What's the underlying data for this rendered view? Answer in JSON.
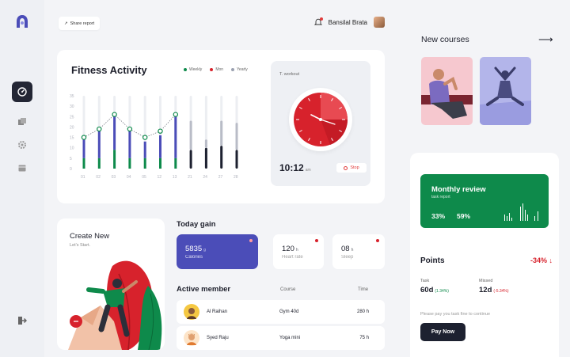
{
  "colors": {
    "accent_green": "#0e8a4b",
    "accent_purple": "#4b4db8",
    "accent_red": "#d7222c",
    "dark": "#1d2130"
  },
  "header": {
    "share_label": "Share report",
    "user_name": "Bansilal Brata"
  },
  "fitness": {
    "title": "Fitness Activity",
    "legend": [
      {
        "label": "Weekly",
        "color": "#0e8a4b"
      },
      {
        "label": "Mon",
        "color": "#d7222c"
      },
      {
        "label": "Yearly",
        "color": "#9aa0b0"
      }
    ]
  },
  "chart_data": {
    "type": "bar",
    "ylabels": [
      "35",
      "30",
      "25",
      "20",
      "15",
      "10",
      "5",
      "0"
    ],
    "categories": [
      "01",
      "02",
      "03",
      "04",
      "05",
      "12",
      "13",
      "21",
      "24",
      "27",
      "28"
    ],
    "ylim": [
      0,
      35
    ],
    "series": [
      {
        "values": [
          14,
          18,
          25,
          18,
          13,
          16,
          25,
          0,
          0,
          0,
          0
        ],
        "color": "#4b4db8"
      },
      {
        "values": [
          5,
          5,
          9,
          5,
          5,
          5,
          5,
          0,
          0,
          0,
          0
        ],
        "color": "#0e8a4b"
      },
      {
        "values": [
          0,
          0,
          0,
          0,
          0,
          0,
          0,
          23,
          14,
          23,
          22
        ],
        "color": "#b9bcc7"
      },
      {
        "values": [
          0,
          0,
          0,
          0,
          0,
          0,
          0,
          9,
          10,
          11,
          9
        ],
        "color": "#1d2130"
      }
    ],
    "line_points": [
      15,
      19,
      26,
      19,
      15,
      18,
      26
    ]
  },
  "workout": {
    "label": "T. workout",
    "time": "10:12",
    "unit": "am",
    "stop_label": "Stop"
  },
  "create": {
    "title": "Create New",
    "subtitle": "Let's Start."
  },
  "today_gain": {
    "title": "Today gain",
    "items": [
      {
        "value": "5835",
        "unit": "g",
        "label": "Calories"
      },
      {
        "value": "120",
        "unit": "h",
        "label": "Heart rate"
      },
      {
        "value": "08",
        "unit": "h",
        "label": "Sleep"
      }
    ]
  },
  "members": {
    "title": "Active member",
    "col_course": "Course",
    "col_time": "Time",
    "rows": [
      {
        "name": "Al Raihan",
        "course": "Gym 40d",
        "time": "280 h"
      },
      {
        "name": "Syed Raju",
        "course": "Yoga mini",
        "time": "75 h"
      }
    ]
  },
  "new_courses": {
    "title": "New courses",
    "arrow": "⟶"
  },
  "review": {
    "title": "Monthly review",
    "subtitle": "task report",
    "pct1": "33%",
    "pct2": "59%"
  },
  "points": {
    "title": "Points",
    "change": "-34%",
    "task_label": "Task",
    "task_value": "60d",
    "task_delta": "(1.34%)",
    "missed_label": "Missed",
    "missed_value": "12d",
    "missed_delta": "(-5.34%)",
    "note": "Please pay you task fine to continue",
    "pay_label": "Pay Now"
  }
}
